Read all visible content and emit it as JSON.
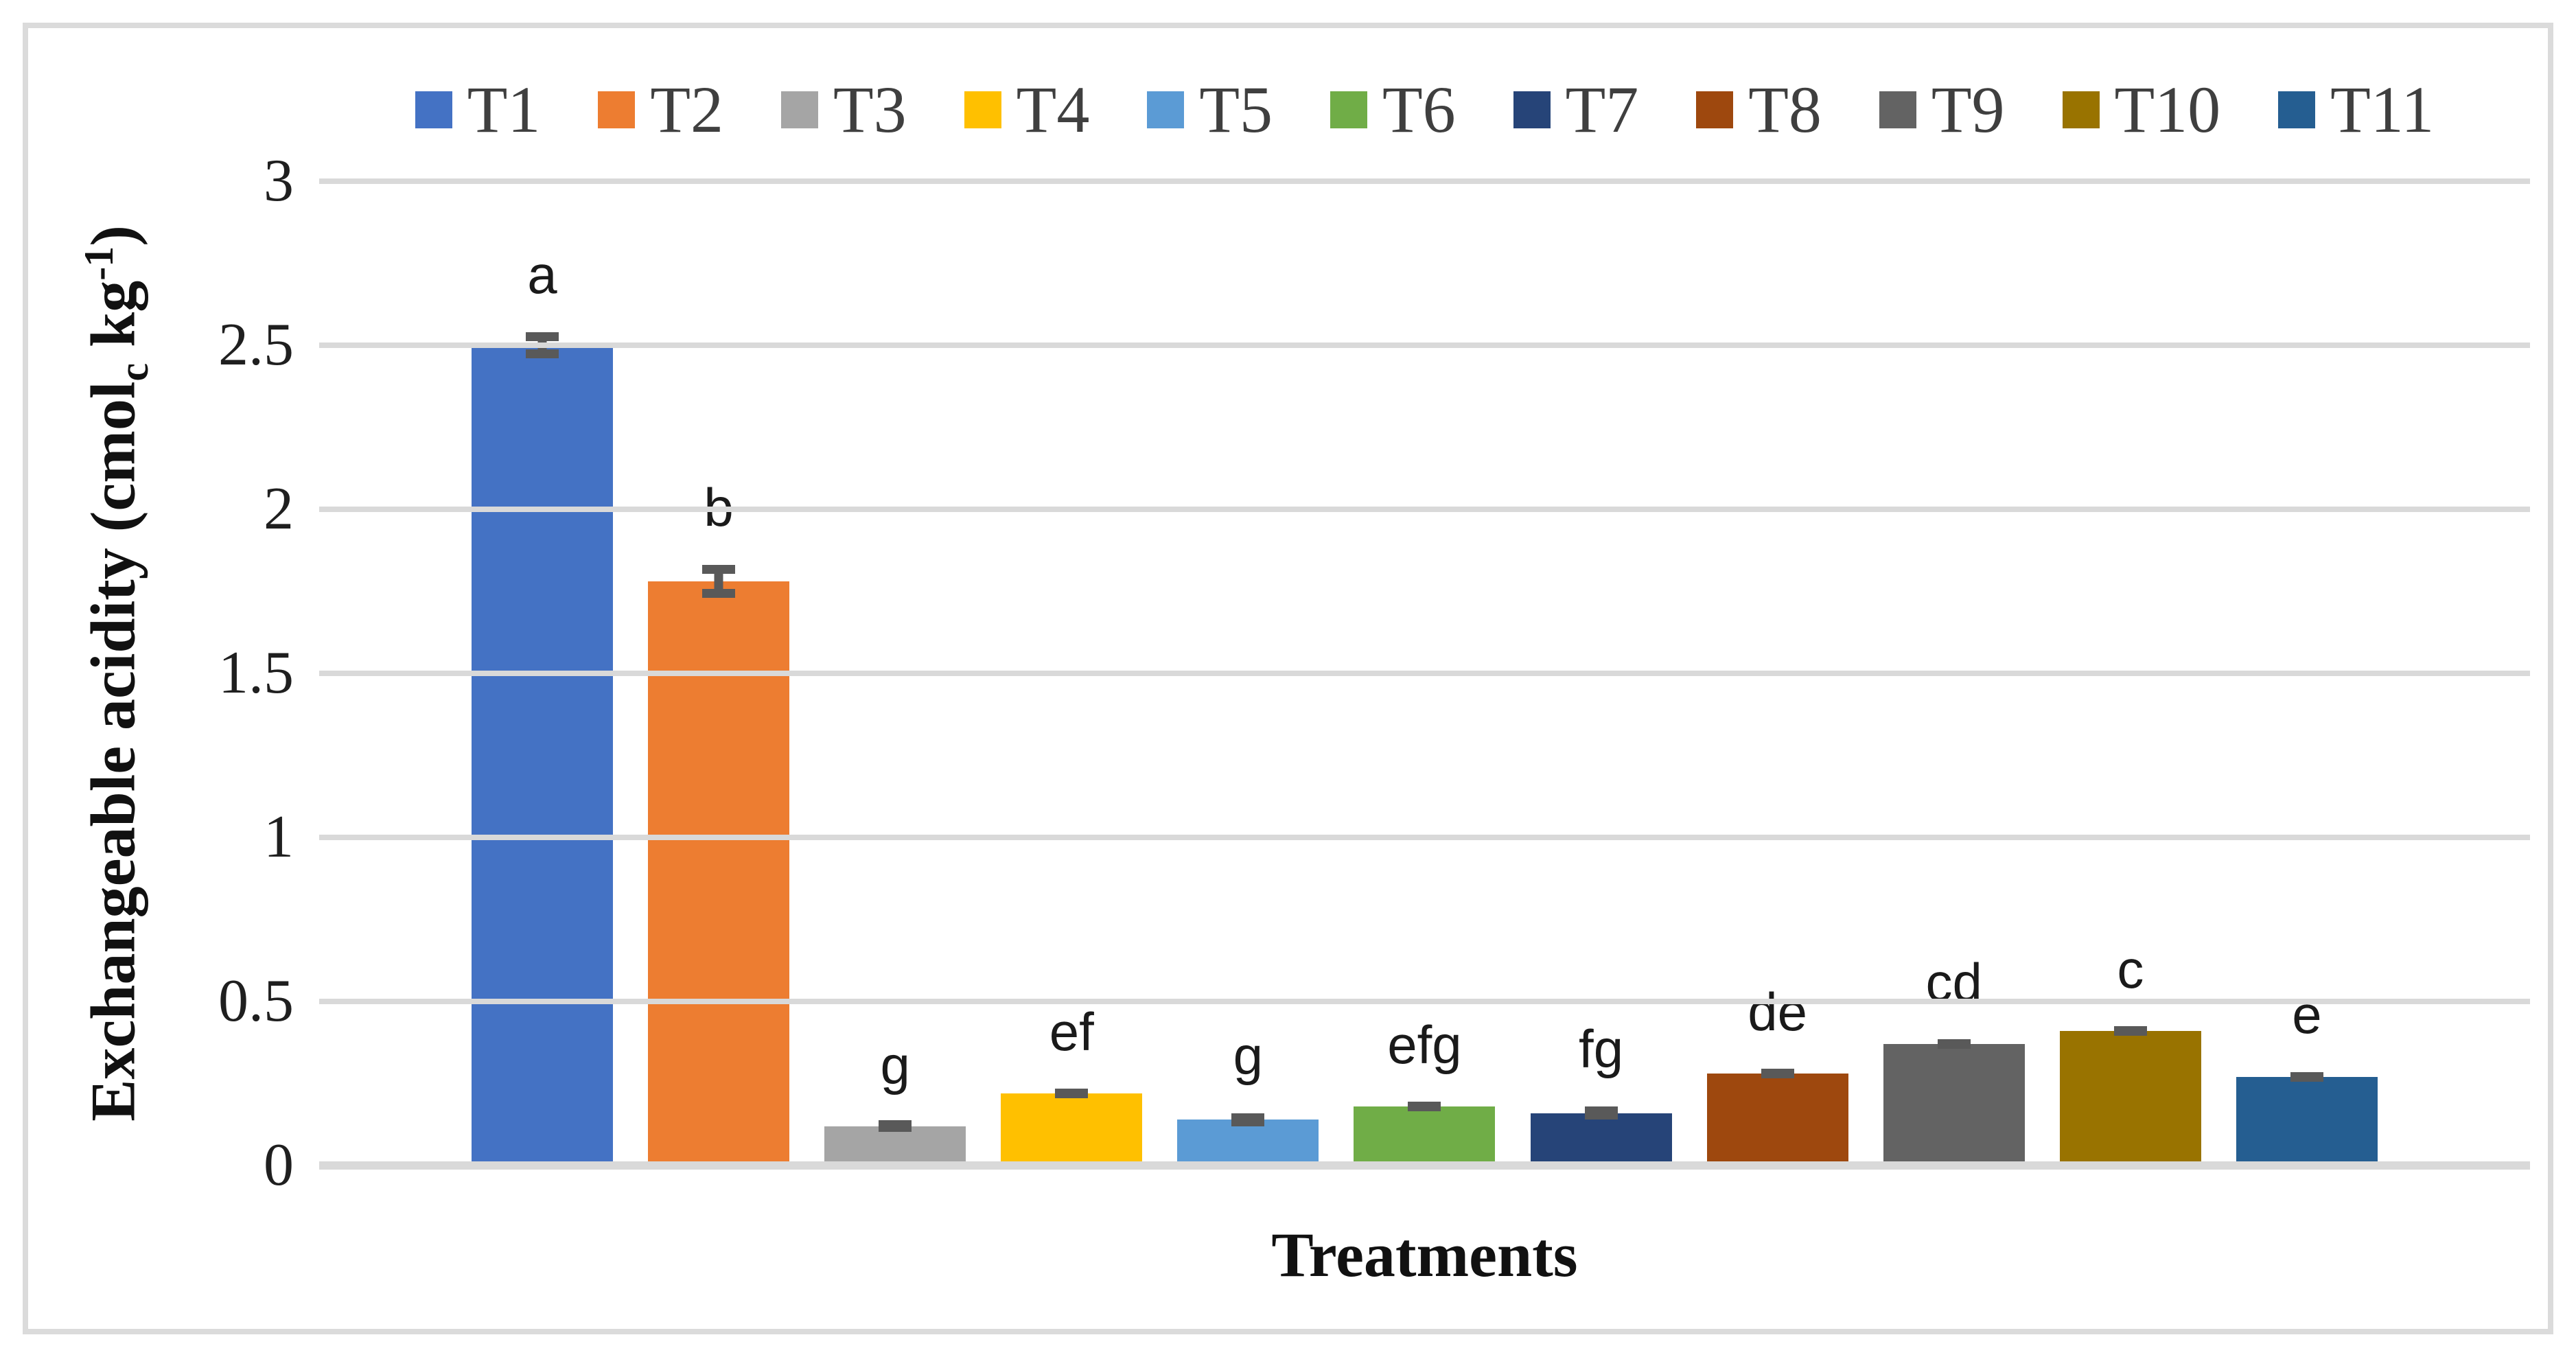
{
  "figure": {
    "background_color": "#FFFFFF",
    "border_color": "#DBDBDB"
  },
  "chart_data": {
    "type": "bar",
    "title": "",
    "xlabel": "Treatments",
    "ylabel": "Exchangeable acidity (cmolc kg-1)",
    "ylabel_parts": {
      "pre": "Exchangeable acidity (cmol",
      "sub": "c",
      "mid": " kg",
      "sup": "-1",
      "post": ")"
    },
    "ylim": [
      0,
      3
    ],
    "yticks": [
      0,
      0.5,
      1,
      1.5,
      2,
      2.5,
      3
    ],
    "ytick_labels": [
      "0",
      "0.5",
      "1",
      "1.5",
      "2",
      "2.5",
      "3"
    ],
    "grid": "horizontal",
    "gridline_color": "#D9D9D9",
    "legend_position": "top",
    "categories": [
      "T1",
      "T2",
      "T3",
      "T4",
      "T5",
      "T6",
      "T7",
      "T8",
      "T9",
      "T10",
      "T11"
    ],
    "values": [
      2.5,
      1.78,
      0.12,
      0.22,
      0.14,
      0.18,
      0.16,
      0.28,
      0.37,
      0.41,
      0.27
    ],
    "errors": [
      0.04,
      0.05,
      0.01,
      0.012,
      0.02,
      0.012,
      0.02,
      0.012,
      0.012,
      0.012,
      0.015
    ],
    "sig_letters": [
      "a",
      "b",
      "g",
      "ef",
      "g",
      "efg",
      "fg",
      "de",
      "cd",
      "c",
      "e"
    ],
    "bar_colors": [
      "#4472C4",
      "#ED7D31",
      "#A5A5A5",
      "#FFC000",
      "#5B9BD5",
      "#70AD47",
      "#264478",
      "#9E480E",
      "#636363",
      "#997300",
      "#255E91"
    ],
    "error_bar_color": "#595959"
  }
}
